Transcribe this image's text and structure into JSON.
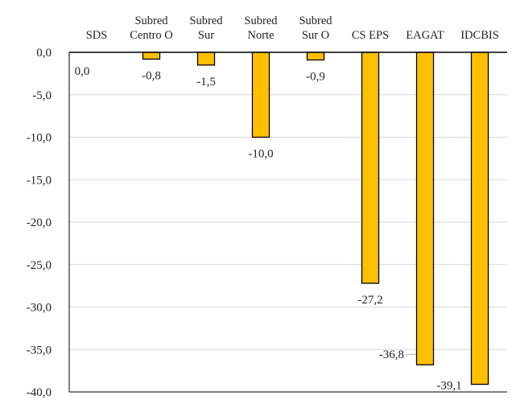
{
  "chart_data": {
    "type": "bar",
    "title": "",
    "xlabel": "",
    "ylabel": "",
    "categories": [
      [
        "SDS"
      ],
      [
        "Subred",
        "Centro O"
      ],
      [
        "Subred",
        "Sur"
      ],
      [
        "Subred",
        "Norte"
      ],
      [
        "Subred",
        "Sur O"
      ],
      [
        "CS EPS"
      ],
      [
        "EAGAT"
      ],
      [
        "IDCBIS"
      ]
    ],
    "values": [
      0.0,
      -0.8,
      -1.5,
      -10.0,
      -0.9,
      -27.2,
      -36.8,
      -39.1
    ],
    "value_labels": [
      "0,0",
      "-0,8",
      "-1,5",
      "-10,0",
      "-0,9",
      "-27,2",
      "-36,8",
      "-39,1"
    ],
    "ylim": [
      -40,
      0
    ],
    "yticks": [
      0,
      -5,
      -10,
      -15,
      -20,
      -25,
      -30,
      -35,
      -40
    ],
    "ytick_labels": [
      "0,0",
      "-5,0",
      "-10,0",
      "-15,0",
      "-20,0",
      "-25,0",
      "-30,0",
      "-35,0",
      "-40,0"
    ],
    "grid": true,
    "legend": "none",
    "colors": {
      "bar_fill": "#FFC000",
      "bar_stroke": "#000000",
      "grid": "#d9d9d9",
      "axis": "#000000",
      "leader": "#a6a6a6"
    }
  }
}
